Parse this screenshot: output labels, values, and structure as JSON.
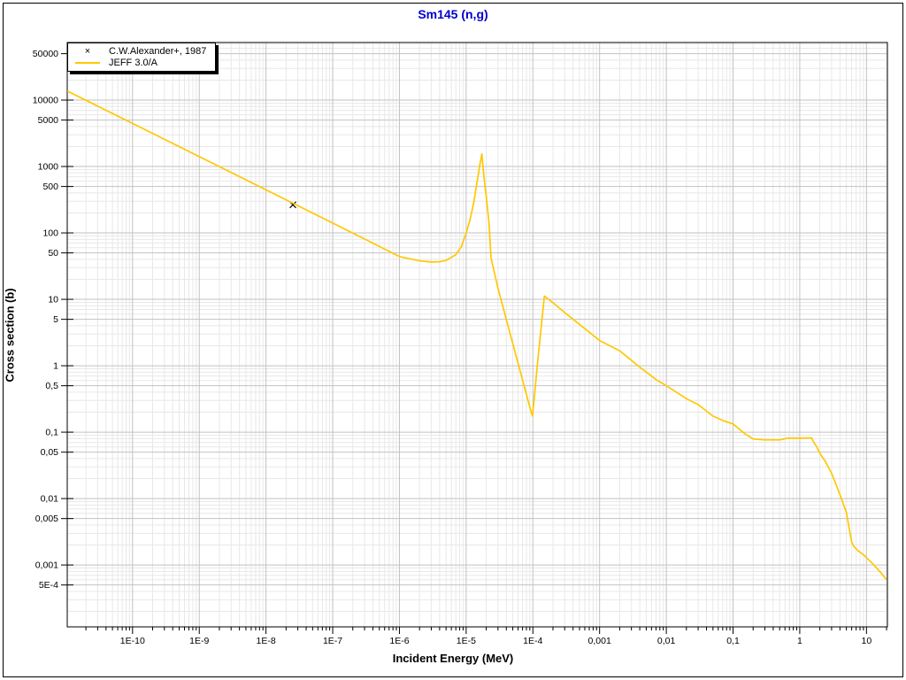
{
  "title": {
    "text": "Sm145 (n,g)",
    "color": "#0000CC"
  },
  "axes": {
    "x_label": "Incident Energy (MeV)",
    "y_label": "Cross section (b)",
    "x_ticks": [
      {
        "value": 1e-10,
        "label": "1E-10"
      },
      {
        "value": 1e-09,
        "label": "1E-9"
      },
      {
        "value": 1e-08,
        "label": "1E-8"
      },
      {
        "value": 1e-07,
        "label": "1E-7"
      },
      {
        "value": 1e-06,
        "label": "1E-6"
      },
      {
        "value": 1e-05,
        "label": "1E-5"
      },
      {
        "value": 0.0001,
        "label": "1E-4"
      },
      {
        "value": 0.001,
        "label": "0,001"
      },
      {
        "value": 0.01,
        "label": "0,01"
      },
      {
        "value": 0.1,
        "label": "0,1"
      },
      {
        "value": 1,
        "label": "1"
      },
      {
        "value": 10,
        "label": "10"
      }
    ],
    "y_ticks": [
      {
        "value": 50000,
        "label": "50000"
      },
      {
        "value": 10000,
        "label": "10000"
      },
      {
        "value": 5000,
        "label": "5000"
      },
      {
        "value": 1000,
        "label": "1000"
      },
      {
        "value": 500,
        "label": "500"
      },
      {
        "value": 100,
        "label": "100"
      },
      {
        "value": 50,
        "label": "50"
      },
      {
        "value": 10,
        "label": "10"
      },
      {
        "value": 5,
        "label": "5"
      },
      {
        "value": 1,
        "label": "1"
      },
      {
        "value": 0.5,
        "label": "0,5"
      },
      {
        "value": 0.1,
        "label": "0,1"
      },
      {
        "value": 0.05,
        "label": "0,05"
      },
      {
        "value": 0.01,
        "label": "0,01"
      },
      {
        "value": 0.005,
        "label": "0,005"
      },
      {
        "value": 0.001,
        "label": "0,001"
      },
      {
        "value": 0.0005,
        "label": "5E-4"
      }
    ]
  },
  "legend": {
    "items": [
      {
        "marker": "x",
        "label": "C.W.Alexander+, 1987",
        "color": "#000000"
      },
      {
        "marker": "line",
        "label": "JEFF 3.0/A",
        "color": "#FFC800"
      }
    ]
  },
  "chart_data": {
    "type": "line",
    "title": "Sm145 (n,g)",
    "xlabel": "Incident Energy (MeV)",
    "ylabel": "Cross section (b)",
    "xscale": "log",
    "yscale": "log",
    "xlim": [
      1.05e-11,
      20.6
    ],
    "ylim": [
      0.000117,
      73600
    ],
    "grid": {
      "major_color": "#c2c2c2",
      "minor_color": "#e8e8e8"
    },
    "series": [
      {
        "name": "C.W.Alexander+, 1987",
        "type": "scatter",
        "marker": "x",
        "color": "#000000",
        "points": [
          [
            2.53e-08,
            265
          ]
        ]
      },
      {
        "name": "JEFF 3.0/A",
        "type": "line",
        "color": "#FFC800",
        "points": [
          [
            1.05e-11,
            13700
          ],
          [
            1e-10,
            4450
          ],
          [
            1e-09,
            1408
          ],
          [
            1e-08,
            445
          ],
          [
            1e-07,
            141
          ],
          [
            3e-07,
            81
          ],
          [
            1e-06,
            44
          ],
          [
            2e-06,
            38
          ],
          [
            3e-06,
            36.5
          ],
          [
            4e-06,
            36.8
          ],
          [
            5e-06,
            38.5
          ],
          [
            7e-06,
            47
          ],
          [
            8.5e-06,
            62
          ],
          [
            1e-05,
            100
          ],
          [
            1.15e-05,
            160
          ],
          [
            1.3e-05,
            290
          ],
          [
            1.45e-05,
            560
          ],
          [
            1.6e-05,
            1050
          ],
          [
            1.72e-05,
            1550
          ],
          [
            1.85e-05,
            700
          ],
          [
            2e-05,
            350
          ],
          [
            2.2e-05,
            140
          ],
          [
            2.36e-05,
            42
          ],
          [
            3e-05,
            14.8
          ],
          [
            5e-05,
            2.15
          ],
          [
            7e-05,
            0.61
          ],
          [
            9e-05,
            0.24
          ],
          [
            9.9e-05,
            0.175
          ],
          [
            0.00012,
            1.35
          ],
          [
            0.000135,
            4.3
          ],
          [
            0.000149,
            11.2
          ],
          [
            0.0002,
            8.9
          ],
          [
            0.0003,
            6.3
          ],
          [
            0.0004,
            5.0
          ],
          [
            0.0007,
            3.2
          ],
          [
            0.001,
            2.4
          ],
          [
            0.002,
            1.68
          ],
          [
            0.004,
            0.95
          ],
          [
            0.007,
            0.62
          ],
          [
            0.01,
            0.5
          ],
          [
            0.02,
            0.32
          ],
          [
            0.03,
            0.26
          ],
          [
            0.05,
            0.175
          ],
          [
            0.07,
            0.15
          ],
          [
            0.1,
            0.133
          ],
          [
            0.15,
            0.095
          ],
          [
            0.2,
            0.079
          ],
          [
            0.3,
            0.0765
          ],
          [
            0.5,
            0.0765
          ],
          [
            0.65,
            0.081
          ],
          [
            1.0,
            0.081
          ],
          [
            1.5,
            0.082
          ],
          [
            1.6,
            0.072
          ],
          [
            1.8,
            0.06
          ],
          [
            2.0,
            0.048
          ],
          [
            2.43,
            0.036
          ],
          [
            3.0,
            0.024
          ],
          [
            4.0,
            0.0115
          ],
          [
            5.0,
            0.0062
          ],
          [
            6.0,
            0.0022
          ],
          [
            6.5,
            0.0019
          ],
          [
            7.5,
            0.00163
          ],
          [
            9.2,
            0.0014
          ],
          [
            12,
            0.00108
          ],
          [
            16,
            0.00079
          ],
          [
            20,
            0.0006
          ]
        ]
      }
    ]
  }
}
